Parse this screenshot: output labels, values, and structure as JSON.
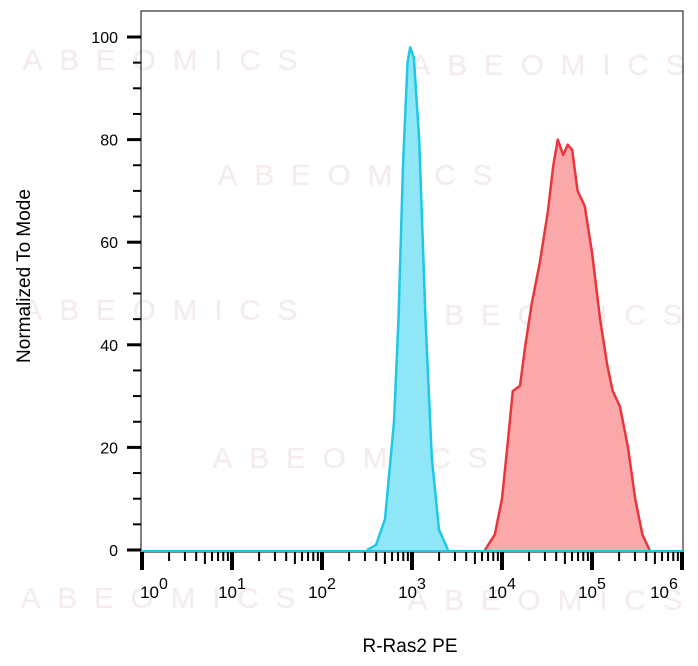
{
  "watermark": "ABEOMICS",
  "chart_data": {
    "type": "area",
    "title": "",
    "xlabel": "R-Ras2 PE",
    "ylabel": "Normalized To Mode",
    "x_scale": "log",
    "xlim_log10": [
      0,
      6
    ],
    "ylim": [
      0,
      100
    ],
    "x_ticks": [
      {
        "base": "10",
        "exp": "0"
      },
      {
        "base": "10",
        "exp": "1"
      },
      {
        "base": "10",
        "exp": "2"
      },
      {
        "base": "10",
        "exp": "3"
      },
      {
        "base": "10",
        "exp": "4"
      },
      {
        "base": "10",
        "exp": "5"
      },
      {
        "base": "10",
        "exp": "6"
      }
    ],
    "y_ticks": [
      "0",
      "20",
      "40",
      "60",
      "80",
      "100"
    ],
    "grid": false,
    "legend": "none",
    "series": [
      {
        "color": "#1ec8e8",
        "fill": "#8fe6f7",
        "log10_x": [
          2.5,
          2.6,
          2.7,
          2.8,
          2.85,
          2.9,
          2.95,
          2.98,
          3.02,
          3.08,
          3.15,
          3.22,
          3.3,
          3.4
        ],
        "y": [
          0,
          1,
          6,
          25,
          45,
          75,
          95,
          98,
          96,
          80,
          45,
          18,
          4,
          0
        ]
      },
      {
        "color": "#e8363c",
        "fill": "#fba8aa",
        "log10_x": [
          3.81,
          3.92,
          4.0,
          4.07,
          4.12,
          4.2,
          4.26,
          4.33,
          4.42,
          4.51,
          4.57,
          4.62,
          4.68,
          4.73,
          4.78,
          4.84,
          4.92,
          5.0,
          5.09,
          5.17,
          5.23,
          5.31,
          5.4,
          5.48,
          5.56,
          5.64
        ],
        "y": [
          0,
          3,
          10,
          22,
          31,
          32,
          40,
          48,
          56,
          66,
          75,
          80,
          77,
          79,
          78,
          70,
          67,
          58,
          45,
          36,
          31,
          28,
          20,
          10,
          3,
          0
        ]
      }
    ]
  }
}
